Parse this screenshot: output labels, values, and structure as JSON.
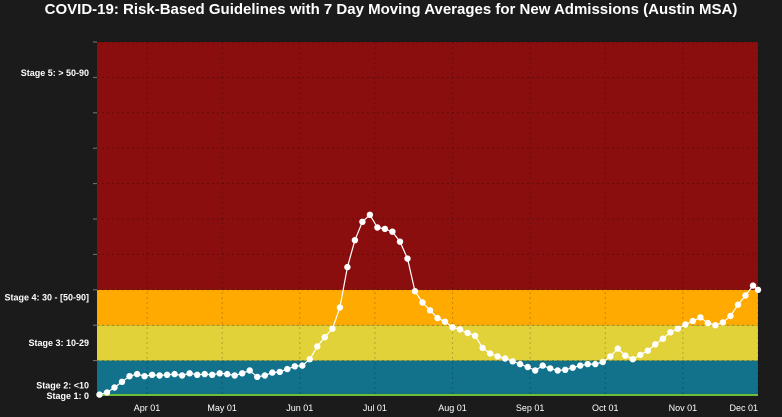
{
  "chart_data": {
    "type": "line",
    "title": "COVID-19: Risk-Based Guidelines with 7 Day Moving Averages for New Admissions (Austin MSA)",
    "xlabel": "",
    "ylabel": "",
    "ylim": [
      0,
      50
    ],
    "xlim": [
      "2020-03-12",
      "2020-12-01"
    ],
    "x_ticks": [
      {
        "label": "Apr 01",
        "date": "2020-04-01"
      },
      {
        "label": "May 01",
        "date": "2020-05-01"
      },
      {
        "label": "Jun 01",
        "date": "2020-06-01"
      },
      {
        "label": "Jul 01",
        "date": "2020-07-01"
      },
      {
        "label": "Aug 01",
        "date": "2020-08-01"
      },
      {
        "label": "Sep 01",
        "date": "2020-09-01"
      },
      {
        "label": "Oct 01",
        "date": "2020-10-01"
      },
      {
        "label": "Nov 01",
        "date": "2020-11-01"
      },
      {
        "label": "Dec 01",
        "date": "2020-12-01"
      }
    ],
    "y_ticks": [
      5,
      10,
      15,
      20,
      25,
      30,
      35,
      40,
      45,
      50
    ],
    "bands": [
      {
        "label": "Stage 1: 0",
        "from": 0,
        "to": 0.3,
        "color": "#6bbf3a"
      },
      {
        "label": "Stage 2: <10",
        "from": 0.3,
        "to": 5,
        "color": "#12728c"
      },
      {
        "label": "Stage 3: 10-29",
        "from": 5,
        "to": 10,
        "color": "#e2d23a"
      },
      {
        "label": "Stage 4: 30 - [50-90]",
        "from": 10,
        "to": 15,
        "color": "#ffaa00"
      },
      {
        "label": "Stage 5: > 50-90",
        "from": 15,
        "to": 50,
        "color": "#8b0e0e"
      }
    ],
    "band_label_values": [
      0,
      1.5,
      7.5,
      13.9,
      45.6
    ],
    "grid": true,
    "marker_color": "#ffffff",
    "series": [
      {
        "x": [
          "2020-03-13",
          "2020-03-16",
          "2020-03-19",
          "2020-03-22",
          "2020-03-25",
          "2020-03-28",
          "2020-03-31",
          "2020-04-03",
          "2020-04-06",
          "2020-04-09",
          "2020-04-12",
          "2020-04-15",
          "2020-04-18",
          "2020-04-21",
          "2020-04-24",
          "2020-04-27",
          "2020-04-30",
          "2020-05-03",
          "2020-05-06",
          "2020-05-09",
          "2020-05-12",
          "2020-05-15",
          "2020-05-18",
          "2020-05-21",
          "2020-05-24",
          "2020-05-27",
          "2020-05-30",
          "2020-06-02",
          "2020-06-05",
          "2020-06-08",
          "2020-06-11",
          "2020-06-14",
          "2020-06-17",
          "2020-06-20",
          "2020-06-23",
          "2020-06-26",
          "2020-06-29",
          "2020-07-02",
          "2020-07-05",
          "2020-07-08",
          "2020-07-11",
          "2020-07-14",
          "2020-07-17",
          "2020-07-20",
          "2020-07-23",
          "2020-07-26",
          "2020-07-29",
          "2020-08-01",
          "2020-08-04",
          "2020-08-07",
          "2020-08-10",
          "2020-08-13",
          "2020-08-16",
          "2020-08-19",
          "2020-08-22",
          "2020-08-25",
          "2020-08-28",
          "2020-08-31",
          "2020-09-03",
          "2020-09-06",
          "2020-09-09",
          "2020-09-12",
          "2020-09-15",
          "2020-09-18",
          "2020-09-21",
          "2020-09-24",
          "2020-09-27",
          "2020-09-30",
          "2020-10-03",
          "2020-10-06",
          "2020-10-09",
          "2020-10-12",
          "2020-10-15",
          "2020-10-18",
          "2020-10-21",
          "2020-10-24",
          "2020-10-27",
          "2020-10-30",
          "2020-11-02",
          "2020-11-05",
          "2020-11-08",
          "2020-11-11",
          "2020-11-14",
          "2020-11-17",
          "2020-11-20",
          "2020-11-23",
          "2020-11-26",
          "2020-11-29",
          "2020-12-01"
        ],
        "values": [
          0.2,
          0.5,
          1.2,
          2.0,
          2.8,
          3.1,
          2.8,
          3.0,
          2.9,
          3.0,
          3.1,
          2.9,
          3.2,
          3.0,
          3.1,
          3.0,
          3.2,
          3.1,
          2.9,
          3.2,
          3.6,
          2.7,
          2.9,
          3.3,
          3.4,
          3.8,
          4.2,
          4.3,
          5.2,
          7.0,
          8.3,
          9.5,
          12.5,
          18.2,
          22.0,
          24.6,
          25.6,
          23.8,
          23.6,
          23.2,
          21.8,
          19.4,
          14.8,
          13.2,
          12.1,
          11.0,
          10.5,
          9.7,
          9.4,
          8.9,
          8.5,
          6.8,
          6.0,
          5.6,
          5.3,
          4.9,
          4.5,
          4.1,
          3.6,
          4.3,
          3.9,
          3.6,
          3.7,
          4.0,
          4.3,
          4.5,
          4.5,
          4.8,
          5.6,
          6.7,
          5.7,
          5.2,
          5.8,
          6.4,
          7.3,
          8.1,
          9.0,
          9.5,
          10.1,
          10.6,
          11.1,
          10.3,
          10.0,
          10.4,
          11.3,
          12.9,
          14.2,
          15.6,
          15.0
        ]
      }
    ]
  }
}
